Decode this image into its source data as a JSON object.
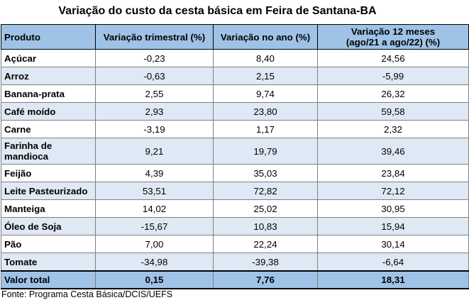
{
  "title": "Variação do custo da cesta básica em Feira de Santana-BA",
  "headers": {
    "produto": "Produto",
    "trimestral": "Variação trimestral (%)",
    "ano": "Variação no ano (%)",
    "doze_meses_1": "Variação 12 meses",
    "doze_meses_2": "(ago/21 a ago/22) (%)"
  },
  "rows": [
    {
      "produto": "Açúcar",
      "trimestral": "-0,23",
      "ano": "8,40",
      "doze": "24,56"
    },
    {
      "produto": "Arroz",
      "trimestral": "-0,63",
      "ano": "2,15",
      "doze": "-5,99"
    },
    {
      "produto": "Banana-prata",
      "trimestral": "2,55",
      "ano": "9,74",
      "doze": "26,32"
    },
    {
      "produto": "Café moído",
      "trimestral": "2,93",
      "ano": "23,80",
      "doze": "59,58"
    },
    {
      "produto": "Carne",
      "trimestral": "-3,19",
      "ano": "1,17",
      "doze": "2,32"
    },
    {
      "produto_l1": "Farinha de",
      "produto_l2": "mandioca",
      "trimestral": "9,21",
      "ano": "19,79",
      "doze": "39,46"
    },
    {
      "produto": "Feijão",
      "trimestral": "4,39",
      "ano": "35,03",
      "doze": "23,84"
    },
    {
      "produto": "Leite Pasteurizado",
      "trimestral": "53,51",
      "ano": "72,82",
      "doze": "72,12"
    },
    {
      "produto": "Manteiga",
      "trimestral": "14,02",
      "ano": "25,02",
      "doze": "30,95"
    },
    {
      "produto": "Óleo de Soja",
      "trimestral": "-15,67",
      "ano": "10,83",
      "doze": "15,94"
    },
    {
      "produto": "Pão",
      "trimestral": "7,00",
      "ano": "22,24",
      "doze": "30,14"
    },
    {
      "produto": "Tomate",
      "trimestral": "-34,98",
      "ano": "-39,38",
      "doze": "-6,64"
    }
  ],
  "total": {
    "produto": "Valor total",
    "trimestral": "0,15",
    "ano": "7,76",
    "doze": "18,31"
  },
  "source": "Fonte: Programa Cesta Básica/DCIS/UEFS"
}
